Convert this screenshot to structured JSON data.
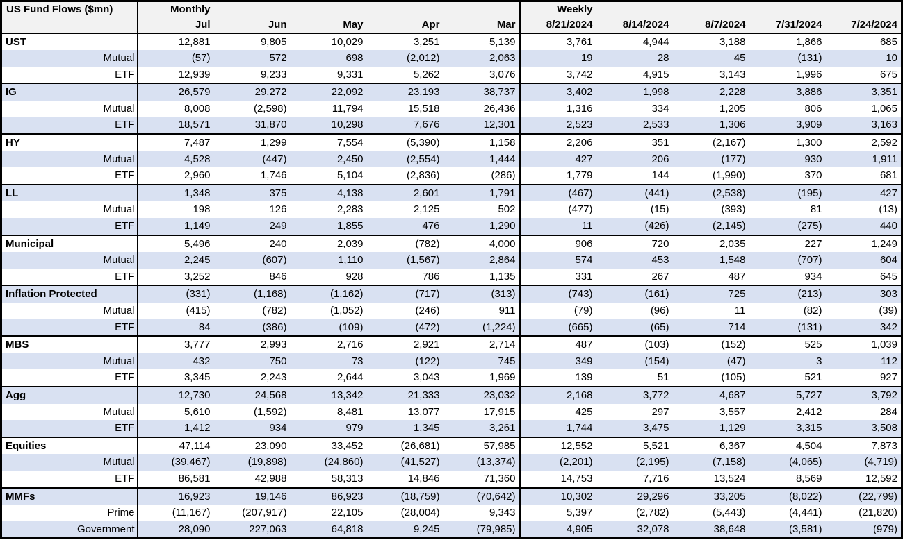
{
  "title": "US Fund Flows ($mn)",
  "colors": {
    "row_shade": "#d9e1f2",
    "header_bg": "#f2f2f2",
    "border": "#000000",
    "text": "#000000"
  },
  "chart_data": {
    "type": "table",
    "title": "US Fund Flows ($mn)",
    "units": "$mn",
    "column_groups": [
      {
        "label": "Monthly",
        "columns": [
          "Jul",
          "Jun",
          "May",
          "Apr",
          "Mar"
        ]
      },
      {
        "label": "Weekly",
        "columns": [
          "8/21/2024",
          "8/14/2024",
          "8/7/2024",
          "7/31/2024",
          "7/24/2024"
        ]
      }
    ],
    "rows": [
      {
        "label": "UST",
        "type": "category",
        "values": [
          "12,881",
          "9,805",
          "10,029",
          "3,251",
          "5,139",
          "3,761",
          "4,944",
          "3,188",
          "1,866",
          "685"
        ]
      },
      {
        "label": "Mutual",
        "type": "sub",
        "values": [
          "(57)",
          "572",
          "698",
          "(2,012)",
          "2,063",
          "19",
          "28",
          "45",
          "(131)",
          "10"
        ]
      },
      {
        "label": "ETF",
        "type": "sub",
        "values": [
          "12,939",
          "9,233",
          "9,331",
          "5,262",
          "3,076",
          "3,742",
          "4,915",
          "3,143",
          "1,996",
          "675"
        ]
      },
      {
        "label": "IG",
        "type": "category",
        "values": [
          "26,579",
          "29,272",
          "22,092",
          "23,193",
          "38,737",
          "3,402",
          "1,998",
          "2,228",
          "3,886",
          "3,351"
        ]
      },
      {
        "label": "Mutual",
        "type": "sub",
        "values": [
          "8,008",
          "(2,598)",
          "11,794",
          "15,518",
          "26,436",
          "1,316",
          "334",
          "1,205",
          "806",
          "1,065"
        ]
      },
      {
        "label": "ETF",
        "type": "sub",
        "values": [
          "18,571",
          "31,870",
          "10,298",
          "7,676",
          "12,301",
          "2,523",
          "2,533",
          "1,306",
          "3,909",
          "3,163"
        ]
      },
      {
        "label": "HY",
        "type": "category",
        "values": [
          "7,487",
          "1,299",
          "7,554",
          "(5,390)",
          "1,158",
          "2,206",
          "351",
          "(2,167)",
          "1,300",
          "2,592"
        ]
      },
      {
        "label": "Mutual",
        "type": "sub",
        "values": [
          "4,528",
          "(447)",
          "2,450",
          "(2,554)",
          "1,444",
          "427",
          "206",
          "(177)",
          "930",
          "1,911"
        ]
      },
      {
        "label": "ETF",
        "type": "sub",
        "values": [
          "2,960",
          "1,746",
          "5,104",
          "(2,836)",
          "(286)",
          "1,779",
          "144",
          "(1,990)",
          "370",
          "681"
        ]
      },
      {
        "label": "LL",
        "type": "category",
        "values": [
          "1,348",
          "375",
          "4,138",
          "2,601",
          "1,791",
          "(467)",
          "(441)",
          "(2,538)",
          "(195)",
          "427"
        ]
      },
      {
        "label": "Mutual",
        "type": "sub",
        "values": [
          "198",
          "126",
          "2,283",
          "2,125",
          "502",
          "(477)",
          "(15)",
          "(393)",
          "81",
          "(13)"
        ]
      },
      {
        "label": "ETF",
        "type": "sub",
        "values": [
          "1,149",
          "249",
          "1,855",
          "476",
          "1,290",
          "11",
          "(426)",
          "(2,145)",
          "(275)",
          "440"
        ]
      },
      {
        "label": "Municipal",
        "type": "category",
        "values": [
          "5,496",
          "240",
          "2,039",
          "(782)",
          "4,000",
          "906",
          "720",
          "2,035",
          "227",
          "1,249"
        ]
      },
      {
        "label": "Mutual",
        "type": "sub",
        "values": [
          "2,245",
          "(607)",
          "1,110",
          "(1,567)",
          "2,864",
          "574",
          "453",
          "1,548",
          "(707)",
          "604"
        ]
      },
      {
        "label": "ETF",
        "type": "sub",
        "values": [
          "3,252",
          "846",
          "928",
          "786",
          "1,135",
          "331",
          "267",
          "487",
          "934",
          "645"
        ]
      },
      {
        "label": "Inflation Protected",
        "type": "category",
        "values": [
          "(331)",
          "(1,168)",
          "(1,162)",
          "(717)",
          "(313)",
          "(743)",
          "(161)",
          "725",
          "(213)",
          "303"
        ]
      },
      {
        "label": "Mutual",
        "type": "sub",
        "values": [
          "(415)",
          "(782)",
          "(1,052)",
          "(246)",
          "911",
          "(79)",
          "(96)",
          "11",
          "(82)",
          "(39)"
        ]
      },
      {
        "label": "ETF",
        "type": "sub",
        "values": [
          "84",
          "(386)",
          "(109)",
          "(472)",
          "(1,224)",
          "(665)",
          "(65)",
          "714",
          "(131)",
          "342"
        ]
      },
      {
        "label": "MBS",
        "type": "category",
        "values": [
          "3,777",
          "2,993",
          "2,716",
          "2,921",
          "2,714",
          "487",
          "(103)",
          "(152)",
          "525",
          "1,039"
        ]
      },
      {
        "label": "Mutual",
        "type": "sub",
        "values": [
          "432",
          "750",
          "73",
          "(122)",
          "745",
          "349",
          "(154)",
          "(47)",
          "3",
          "112"
        ]
      },
      {
        "label": "ETF",
        "type": "sub",
        "values": [
          "3,345",
          "2,243",
          "2,644",
          "3,043",
          "1,969",
          "139",
          "51",
          "(105)",
          "521",
          "927"
        ]
      },
      {
        "label": "Agg",
        "type": "category",
        "values": [
          "12,730",
          "24,568",
          "13,342",
          "21,333",
          "23,032",
          "2,168",
          "3,772",
          "4,687",
          "5,727",
          "3,792"
        ]
      },
      {
        "label": "Mutual",
        "type": "sub",
        "values": [
          "5,610",
          "(1,592)",
          "8,481",
          "13,077",
          "17,915",
          "425",
          "297",
          "3,557",
          "2,412",
          "284"
        ]
      },
      {
        "label": "ETF",
        "type": "sub",
        "values": [
          "1,412",
          "934",
          "979",
          "1,345",
          "3,261",
          "1,744",
          "3,475",
          "1,129",
          "3,315",
          "3,508"
        ]
      },
      {
        "label": "Equities",
        "type": "category",
        "values": [
          "47,114",
          "23,090",
          "33,452",
          "(26,681)",
          "57,985",
          "12,552",
          "5,521",
          "6,367",
          "4,504",
          "7,873"
        ]
      },
      {
        "label": "Mutual",
        "type": "sub",
        "values": [
          "(39,467)",
          "(19,898)",
          "(24,860)",
          "(41,527)",
          "(13,374)",
          "(2,201)",
          "(2,195)",
          "(7,158)",
          "(4,065)",
          "(4,719)"
        ]
      },
      {
        "label": "ETF",
        "type": "sub",
        "values": [
          "86,581",
          "42,988",
          "58,313",
          "14,846",
          "71,360",
          "14,753",
          "7,716",
          "13,524",
          "8,569",
          "12,592"
        ]
      },
      {
        "label": "MMFs",
        "type": "category",
        "values": [
          "16,923",
          "19,146",
          "86,923",
          "(18,759)",
          "(70,642)",
          "10,302",
          "29,296",
          "33,205",
          "(8,022)",
          "(22,799)"
        ]
      },
      {
        "label": "Prime",
        "type": "sub",
        "values": [
          "(11,167)",
          "(207,917)",
          "22,105",
          "(28,004)",
          "9,343",
          "5,397",
          "(2,782)",
          "(5,443)",
          "(4,441)",
          "(21,820)"
        ]
      },
      {
        "label": "Government",
        "type": "sub",
        "values": [
          "28,090",
          "227,063",
          "64,818",
          "9,245",
          "(79,985)",
          "4,905",
          "32,078",
          "38,648",
          "(3,581)",
          "(979)"
        ]
      }
    ]
  }
}
